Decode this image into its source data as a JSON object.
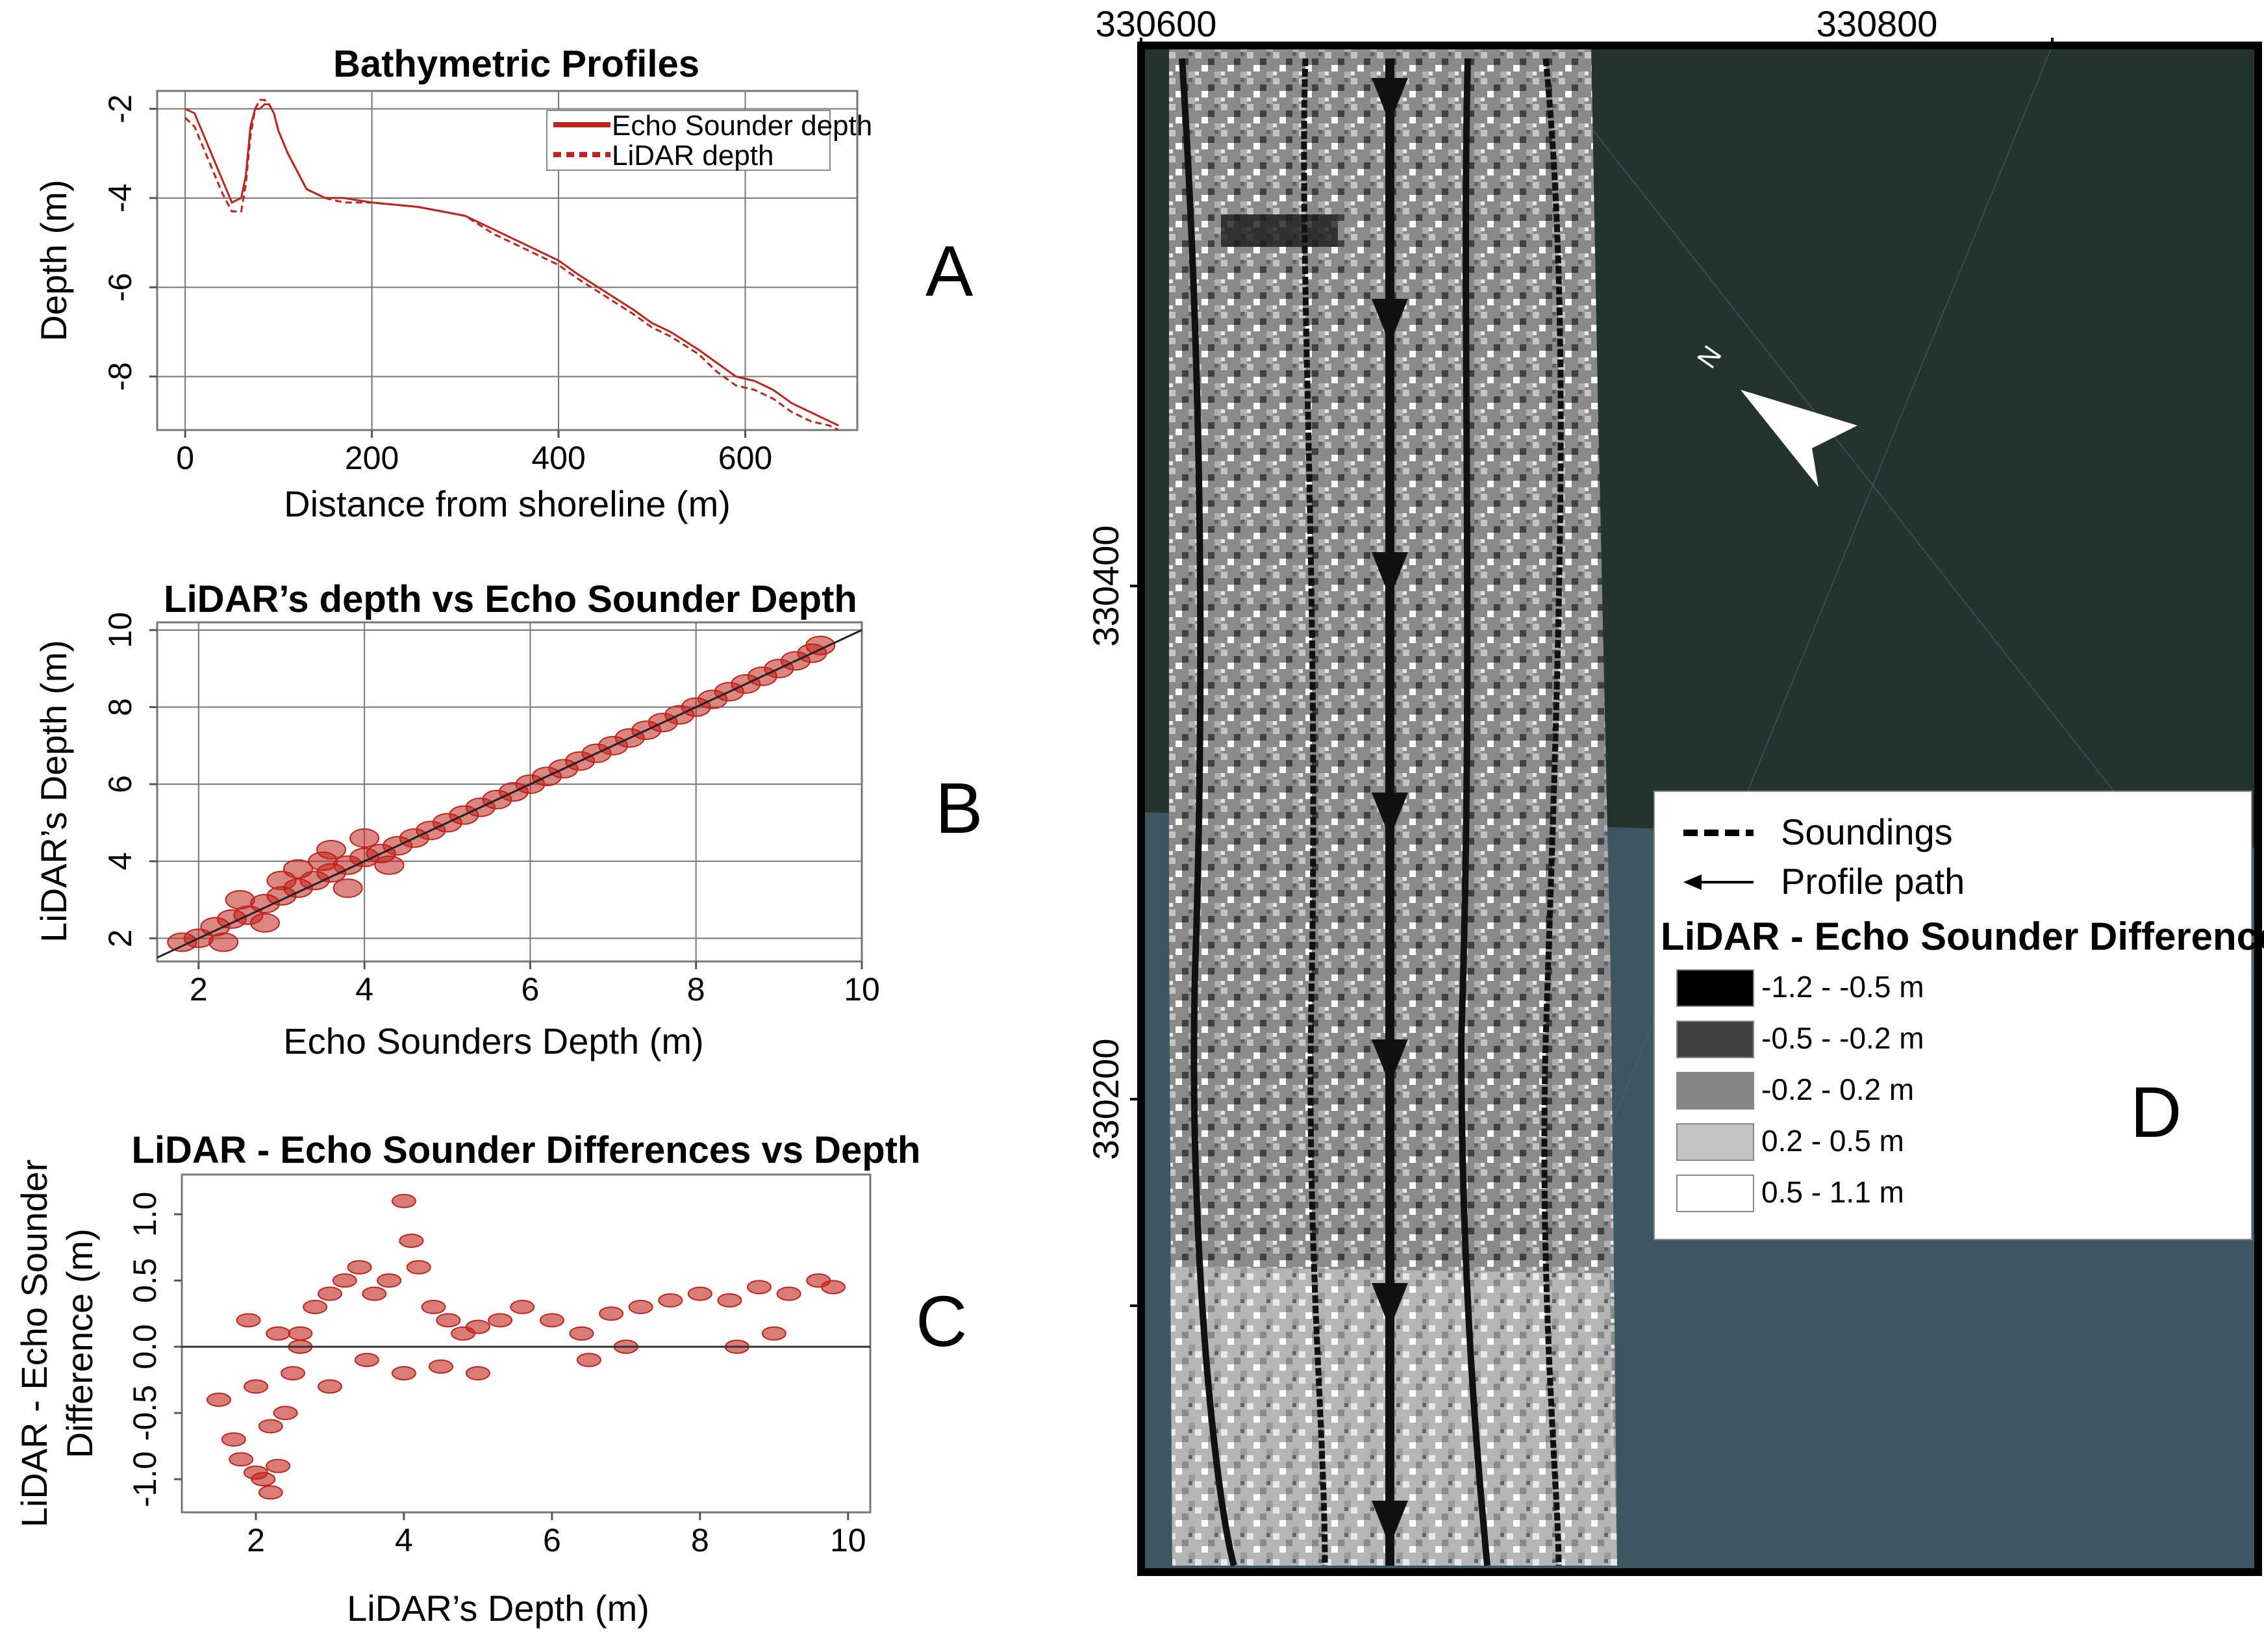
{
  "colors": {
    "echo": "#c0231b",
    "lidar": "#c0231b",
    "scatter": "#c0231b"
  },
  "panel_letters": {
    "a": "A",
    "b": "B",
    "c": "C",
    "d": "D"
  },
  "chart_data": [
    {
      "type": "line",
      "title": "Bathymetric Profiles",
      "xlabel": "Distance from shoreline (m)",
      "ylabel": "Depth (m)",
      "xlim": [
        -30,
        720
      ],
      "ylim": [
        -9.2,
        -1.6
      ],
      "xticks": [
        "0",
        "200",
        "400",
        "600"
      ],
      "xtick_values": [
        0,
        200,
        400,
        600
      ],
      "yticks": [
        "-2",
        "-4",
        "-6",
        "-8"
      ],
      "ytick_values": [
        -2,
        -4,
        -6,
        -8
      ],
      "series": [
        {
          "name": "Echo Sounder depth",
          "style": "solid",
          "x": [
            0,
            10,
            20,
            30,
            40,
            50,
            60,
            65,
            70,
            75,
            80,
            85,
            90,
            95,
            100,
            110,
            120,
            130,
            150,
            170,
            200,
            250,
            300,
            330,
            360,
            400,
            420,
            450,
            480,
            500,
            520,
            550,
            570,
            590,
            610,
            630,
            650,
            670,
            690,
            700
          ],
          "y": [
            -2.0,
            -2.1,
            -2.6,
            -3.1,
            -3.6,
            -4.1,
            -4.0,
            -3.5,
            -2.4,
            -2.0,
            -2.0,
            -1.9,
            -1.9,
            -2.1,
            -2.5,
            -3.0,
            -3.4,
            -3.8,
            -4.0,
            -4.0,
            -4.1,
            -4.2,
            -4.4,
            -4.7,
            -5.0,
            -5.4,
            -5.7,
            -6.1,
            -6.5,
            -6.8,
            -7.0,
            -7.4,
            -7.7,
            -8.0,
            -8.1,
            -8.3,
            -8.6,
            -8.8,
            -9.0,
            -9.1
          ]
        },
        {
          "name": "LiDAR depth",
          "style": "dashed",
          "x": [
            0,
            10,
            20,
            30,
            40,
            50,
            60,
            65,
            70,
            75,
            80,
            85,
            90,
            95,
            100,
            110,
            120,
            130,
            150,
            170,
            200,
            250,
            300,
            330,
            360,
            400,
            420,
            450,
            480,
            500,
            520,
            550,
            570,
            590,
            610,
            630,
            650,
            670,
            690,
            700
          ],
          "y": [
            -2.2,
            -2.4,
            -2.9,
            -3.4,
            -3.9,
            -4.3,
            -4.3,
            -3.7,
            -2.6,
            -2.0,
            -1.8,
            -1.8,
            -1.9,
            -2.1,
            -2.5,
            -3.0,
            -3.4,
            -3.8,
            -4.0,
            -4.1,
            -4.1,
            -4.2,
            -4.4,
            -4.8,
            -5.1,
            -5.5,
            -5.8,
            -6.2,
            -6.6,
            -6.9,
            -7.1,
            -7.5,
            -7.9,
            -8.2,
            -8.3,
            -8.5,
            -8.8,
            -9.0,
            -9.1,
            -9.2
          ]
        }
      ]
    },
    {
      "type": "scatter",
      "title": "LiDAR’s depth vs Echo Sounder Depth",
      "xlabel": "Echo Sounders Depth (m)",
      "ylabel": "LiDAR’s Depth (m)",
      "xlim": [
        1.5,
        10
      ],
      "ylim": [
        1.4,
        10.2
      ],
      "xticks": [
        "2",
        "4",
        "6",
        "8",
        "10"
      ],
      "xtick_values": [
        2,
        4,
        6,
        8,
        10
      ],
      "yticks": [
        "2",
        "4",
        "6",
        "8",
        "10"
      ],
      "ytick_values": [
        2,
        4,
        6,
        8,
        10
      ],
      "fit_line": [
        [
          1.5,
          1.5
        ],
        [
          10,
          10
        ]
      ],
      "x": [
        1.8,
        2.0,
        2.2,
        2.4,
        2.6,
        2.8,
        3.0,
        3.2,
        3.4,
        3.6,
        3.8,
        4.0,
        4.2,
        4.4,
        4.6,
        4.8,
        5.0,
        5.2,
        5.4,
        5.6,
        5.8,
        6.0,
        6.2,
        6.4,
        6.6,
        6.8,
        7.0,
        7.2,
        7.4,
        7.6,
        7.8,
        8.0,
        8.2,
        8.4,
        8.6,
        8.8,
        9.0,
        9.2,
        9.4,
        9.5,
        2.5,
        3.0,
        3.5,
        4.0,
        3.2,
        2.8,
        3.8,
        4.3,
        2.3,
        3.6
      ],
      "y": [
        1.9,
        2.0,
        2.3,
        2.5,
        2.6,
        2.9,
        3.1,
        3.3,
        3.5,
        3.7,
        3.9,
        4.1,
        4.2,
        4.4,
        4.6,
        4.8,
        5.0,
        5.2,
        5.4,
        5.6,
        5.8,
        6.0,
        6.2,
        6.4,
        6.6,
        6.8,
        7.0,
        7.2,
        7.4,
        7.6,
        7.8,
        8.0,
        8.2,
        8.4,
        8.6,
        8.8,
        9.0,
        9.2,
        9.4,
        9.6,
        3.0,
        3.5,
        4.0,
        4.6,
        3.8,
        2.4,
        3.3,
        3.9,
        1.9,
        4.3
      ]
    },
    {
      "type": "scatter",
      "title": "LiDAR - Echo Sounder Differences vs Depth",
      "xlabel": "LiDAR’s Depth (m)",
      "ylabel": "LiDAR - Echo Sounder Difference (m)",
      "ylabel_lines": [
        "LiDAR - Echo Sounder",
        "Difference (m)"
      ],
      "xlim": [
        1.0,
        10.3
      ],
      "ylim": [
        -1.25,
        1.3
      ],
      "xticks": [
        "2",
        "4",
        "6",
        "8",
        "10"
      ],
      "xtick_values": [
        2,
        4,
        6,
        8,
        10
      ],
      "yticks": [
        "-1.0",
        "-0.5",
        "0.0",
        "0.5",
        "1.0"
      ],
      "ytick_values": [
        -1.0,
        -0.5,
        0.0,
        0.5,
        1.0
      ],
      "zero_line": 0.0,
      "x": [
        1.5,
        1.7,
        1.8,
        2.0,
        2.1,
        2.2,
        2.3,
        2.4,
        2.5,
        2.6,
        2.8,
        3.0,
        3.2,
        3.4,
        3.6,
        3.8,
        4.0,
        4.1,
        4.2,
        4.4,
        4.6,
        4.8,
        5.0,
        5.3,
        5.6,
        6.0,
        6.4,
        6.8,
        7.2,
        7.6,
        8.0,
        8.4,
        8.8,
        9.2,
        9.6,
        9.8,
        2.3,
        2.0,
        4.0,
        3.5,
        2.6,
        2.2,
        1.9,
        3.0,
        5.0,
        7.0,
        9.0,
        8.5,
        6.5,
        4.5
      ],
      "y": [
        -0.4,
        -0.7,
        -0.85,
        -0.95,
        -1.0,
        -1.1,
        -0.9,
        -0.5,
        -0.2,
        0.1,
        0.3,
        0.4,
        0.5,
        0.6,
        0.4,
        0.5,
        1.1,
        0.8,
        0.6,
        0.3,
        0.2,
        0.1,
        0.15,
        0.2,
        0.3,
        0.2,
        0.1,
        0.25,
        0.3,
        0.35,
        0.4,
        0.35,
        0.45,
        0.4,
        0.5,
        0.45,
        0.1,
        -0.3,
        -0.2,
        -0.1,
        0.0,
        -0.6,
        0.2,
        -0.3,
        -0.2,
        0.0,
        0.1,
        0.0,
        -0.1,
        -0.15
      ]
    }
  ],
  "map": {
    "x_ticks": [
      "330600",
      "330800"
    ],
    "y_ticks": [
      "330400",
      "330200"
    ],
    "north_label": "N",
    "legend": {
      "soundings": "Soundings",
      "profile_path": "Profile path",
      "heading": "LiDAR - Echo Sounder Differences",
      "classes": [
        {
          "label": "-1.2 - -0.5 m",
          "color": "#000000"
        },
        {
          "label": "-0.5 - -0.2 m",
          "color": "#404040"
        },
        {
          "label": "-0.2 - 0.2 m",
          "color": "#858585"
        },
        {
          "label": "0.2 - 0.5 m",
          "color": "#c4c4c4"
        },
        {
          "label": "0.5 - 1.1 m",
          "color": "#ffffff"
        }
      ]
    },
    "colors": {
      "water_dark": "#23332f",
      "water_light": "#3e5661",
      "frame": "#000000"
    }
  }
}
